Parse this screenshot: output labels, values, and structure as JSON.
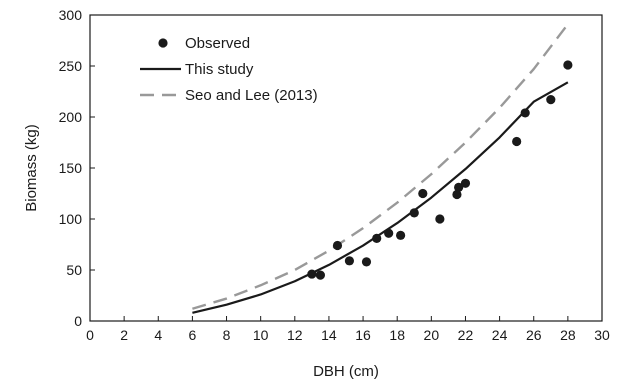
{
  "chart_data": {
    "type": "scatter",
    "title": "",
    "xlabel": "DBH (cm)",
    "ylabel": "Biomass (kg)",
    "xlim": [
      0,
      30
    ],
    "ylim": [
      0,
      300
    ],
    "xticks": [
      0,
      2,
      4,
      6,
      8,
      10,
      12,
      14,
      16,
      18,
      20,
      22,
      24,
      26,
      28,
      30
    ],
    "yticks": [
      0,
      50,
      100,
      150,
      200,
      250,
      300
    ],
    "grid": false,
    "legend_position": "top-left",
    "series": [
      {
        "name": "Observed",
        "kind": "scatter",
        "marker": "filled-circle",
        "color": "#1a1a1a",
        "x": [
          13.0,
          13.5,
          14.5,
          15.2,
          16.2,
          16.8,
          17.5,
          18.2,
          19.0,
          19.5,
          20.5,
          21.5,
          21.6,
          22.0,
          25.0,
          25.5,
          27.0,
          28.0
        ],
        "y": [
          46,
          45,
          74,
          59,
          58,
          81,
          86,
          84,
          106,
          125,
          100,
          124,
          131,
          135,
          176,
          204,
          217,
          251
        ]
      },
      {
        "name": "This study",
        "kind": "line",
        "style": "solid",
        "color": "#1a1a1a",
        "x": [
          6,
          8,
          10,
          12,
          14,
          16,
          18,
          20,
          22,
          24,
          26,
          28
        ],
        "y": [
          8,
          16,
          26,
          39,
          55,
          74,
          96,
          121,
          149,
          180,
          215,
          234
        ]
      },
      {
        "name": "Seo and Lee (2013)",
        "kind": "line",
        "style": "dashed",
        "color": "#999999",
        "x": [
          6,
          8,
          10,
          12,
          14,
          16,
          18,
          20,
          22,
          24,
          26,
          28
        ],
        "y": [
          12,
          22,
          35,
          50,
          69,
          91,
          116,
          144,
          175,
          209,
          247,
          291
        ]
      }
    ]
  }
}
